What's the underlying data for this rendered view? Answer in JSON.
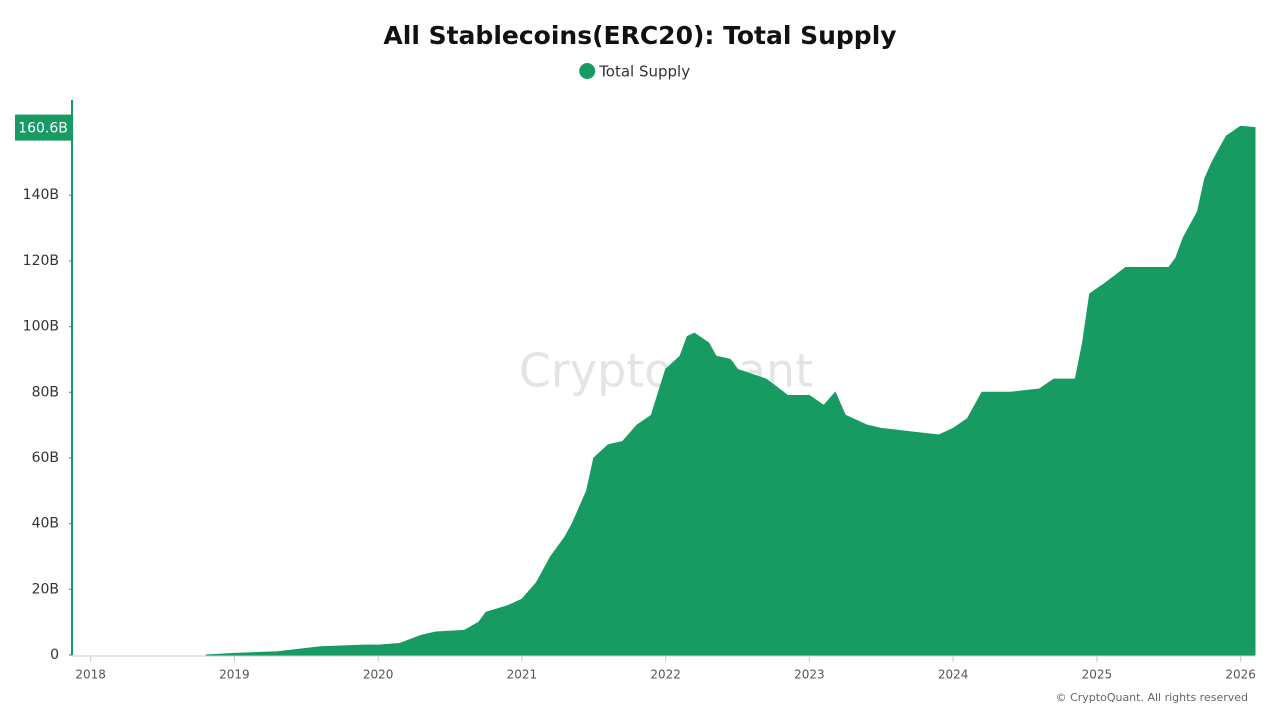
{
  "chart_data": {
    "type": "area",
    "title": "All Stablecoins(ERC20): Total Supply",
    "watermark": "CryptoQuant",
    "footer": "© CryptoQuant. All rights reserved",
    "series": [
      {
        "name": "Total Supply",
        "color": "#179b63",
        "x": [
          2018.8,
          2019.0,
          2019.3,
          2019.6,
          2019.9,
          2020.0,
          2020.15,
          2020.3,
          2020.4,
          2020.6,
          2020.7,
          2020.75,
          2020.9,
          2021.0,
          2021.1,
          2021.2,
          2021.3,
          2021.35,
          2021.45,
          2021.5,
          2021.6,
          2021.7,
          2021.8,
          2021.9,
          2021.95,
          2022.0,
          2022.1,
          2022.15,
          2022.2,
          2022.3,
          2022.35,
          2022.45,
          2022.5,
          2022.7,
          2022.85,
          2023.0,
          2023.1,
          2023.18,
          2023.25,
          2023.4,
          2023.5,
          2023.7,
          2023.9,
          2024.0,
          2024.1,
          2024.2,
          2024.4,
          2024.6,
          2024.7,
          2024.85,
          2024.9,
          2024.95,
          2025.05,
          2025.2,
          2025.35,
          2025.5,
          2025.55,
          2025.6,
          2025.7,
          2025.75,
          2025.8,
          2025.9,
          2026.0,
          2026.1
        ],
        "values": [
          0,
          0.5,
          1,
          2.5,
          3,
          3,
          3.5,
          6,
          7,
          7.5,
          10,
          13,
          15,
          17,
          22,
          30,
          36,
          40,
          50,
          60,
          64,
          65,
          70,
          73,
          80,
          87,
          91,
          97,
          98,
          95,
          91,
          90,
          87,
          84,
          79,
          79,
          76,
          80,
          73,
          70,
          69,
          68,
          67,
          69,
          72,
          80,
          80,
          81,
          84,
          84,
          95,
          110,
          113,
          118,
          118,
          118,
          121,
          127,
          135,
          145,
          150,
          158,
          161,
          160.6
        ]
      }
    ],
    "current_marker": {
      "value": 160.6,
      "label": "160.6B"
    },
    "xlim": [
      2017.87,
      2026.1
    ],
    "xticks": [
      2018,
      2019,
      2020,
      2021,
      2022,
      2023,
      2024,
      2025,
      2026
    ],
    "ylim": [
      0,
      169
    ],
    "yticks": [
      0,
      {
        "value": 20,
        "label": "20B"
      },
      {
        "value": 40,
        "label": "40B"
      },
      {
        "value": 60,
        "label": "60B"
      },
      {
        "value": 80,
        "label": "80B"
      },
      {
        "value": 100,
        "label": "100B"
      },
      {
        "value": 120,
        "label": "120B"
      },
      {
        "value": 140,
        "label": "140B"
      }
    ],
    "grid": false
  }
}
